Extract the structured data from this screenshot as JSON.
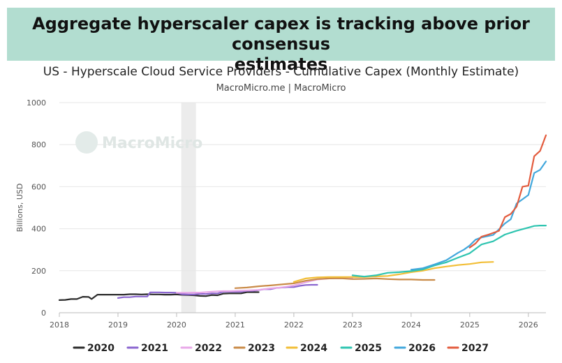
{
  "banner": {
    "line1": "Aggregate hyperscaler capex is tracking above prior consensus",
    "line2": "estimates"
  },
  "chart_data": {
    "type": "line",
    "title": "US - Hyperscale Cloud Service Providers - Cumulative Capex (Monthly Estimate)",
    "subtitle": "MacroMicro.me | MacroMicro",
    "watermark": "MacroMicro",
    "ylabel": "Billions, USD",
    "xlabel": "",
    "xlim": [
      2018.0,
      2026.3
    ],
    "ylim": [
      0,
      1000
    ],
    "x_ticks": [
      2018,
      2019,
      2020,
      2021,
      2022,
      2023,
      2024,
      2025,
      2026
    ],
    "y_ticks": [
      0,
      200,
      400,
      600,
      800,
      1000
    ],
    "shaded_band": [
      2020.08,
      2020.33
    ],
    "grid": true,
    "legend_position": "bottom",
    "series": [
      {
        "name": "2020",
        "color": "#2b2b2b",
        "x": [
          2018.0,
          2018.1,
          2018.2,
          2018.3,
          2018.4,
          2018.5,
          2018.55,
          2018.65,
          2018.75,
          2018.9,
          2019.0,
          2019.1,
          2019.2,
          2019.3,
          2019.4,
          2019.5,
          2019.6,
          2019.7,
          2019.8,
          2019.9,
          2020.0,
          2020.1,
          2020.2,
          2020.3,
          2020.4,
          2020.5,
          2020.6,
          2020.7,
          2020.8,
          2020.9,
          2021.0,
          2021.1,
          2021.2,
          2021.3,
          2021.4
        ],
        "y": [
          60,
          61,
          65,
          65,
          76,
          75,
          65,
          86,
          86,
          86,
          86,
          86,
          88,
          88,
          87,
          88,
          87,
          87,
          86,
          86,
          87,
          85,
          84,
          83,
          80,
          79,
          84,
          83,
          91,
          92,
          92,
          92,
          98,
          98,
          98
        ]
      },
      {
        "name": "2021",
        "color": "#8a65cf",
        "x": [
          2019.0,
          2019.1,
          2019.2,
          2019.3,
          2019.4,
          2019.5,
          2019.55,
          2019.6,
          2019.7,
          2019.8,
          2019.9,
          2020.0,
          2020.1,
          2020.2,
          2020.3,
          2020.4,
          2020.5,
          2020.6,
          2020.7,
          2020.8,
          2020.9,
          2021.0,
          2021.1,
          2021.2,
          2021.3,
          2021.4,
          2021.5,
          2021.6,
          2021.7,
          2021.8,
          2021.9,
          2022.0,
          2022.1,
          2022.2,
          2022.3,
          2022.4
        ],
        "y": [
          70,
          74,
          74,
          77,
          77,
          77,
          97,
          97,
          97,
          96,
          96,
          95,
          88,
          87,
          87,
          90,
          89,
          92,
          92,
          100,
          100,
          100,
          100,
          104,
          104,
          108,
          112,
          112,
          118,
          120,
          122,
          122,
          128,
          132,
          133,
          133
        ]
      },
      {
        "name": "2022",
        "color": "#e8a8e8",
        "x": [
          2020.0,
          2020.1,
          2020.2,
          2020.3,
          2020.4,
          2020.5,
          2020.6,
          2020.7,
          2020.8,
          2020.9,
          2021.0,
          2021.2,
          2021.4,
          2021.6,
          2021.8,
          2022.0,
          2022.2,
          2022.4,
          2022.6,
          2022.8,
          2023.0
        ],
        "y": [
          95,
          95,
          95,
          96,
          96,
          98,
          100,
          102,
          103,
          103,
          104,
          106,
          109,
          116,
          121,
          130,
          145,
          158,
          163,
          163,
          166
        ]
      },
      {
        "name": "2023",
        "color": "#c98a47",
        "x": [
          2021.0,
          2021.2,
          2021.4,
          2021.6,
          2021.8,
          2022.0,
          2022.2,
          2022.4,
          2022.6,
          2022.8,
          2023.0,
          2023.2,
          2023.4,
          2023.6,
          2023.8,
          2024.0,
          2024.2,
          2024.4
        ],
        "y": [
          117,
          120,
          126,
          130,
          135,
          140,
          152,
          160,
          163,
          164,
          160,
          161,
          163,
          160,
          158,
          158,
          156,
          156
        ]
      },
      {
        "name": "2024",
        "color": "#f2be36",
        "x": [
          2022.0,
          2022.2,
          2022.4,
          2022.6,
          2022.8,
          2023.0,
          2023.2,
          2023.4,
          2023.6,
          2023.8,
          2024.0,
          2024.2,
          2024.4,
          2024.6,
          2024.8,
          2025.0,
          2025.2,
          2025.4
        ],
        "y": [
          147,
          163,
          168,
          170,
          170,
          170,
          170,
          173,
          175,
          183,
          193,
          200,
          212,
          220,
          227,
          232,
          240,
          242
        ]
      },
      {
        "name": "2025",
        "color": "#2ec4b0",
        "x": [
          2023.0,
          2023.2,
          2023.4,
          2023.6,
          2023.8,
          2024.0,
          2024.2,
          2024.4,
          2024.6,
          2024.8,
          2025.0,
          2025.2,
          2025.4,
          2025.6,
          2025.8,
          2026.0,
          2026.1,
          2026.2,
          2026.3
        ],
        "y": [
          178,
          172,
          178,
          190,
          193,
          198,
          206,
          225,
          240,
          262,
          283,
          325,
          340,
          372,
          390,
          405,
          413,
          415,
          415
        ]
      },
      {
        "name": "2026",
        "color": "#41a7dc",
        "x": [
          2024.0,
          2024.2,
          2024.4,
          2024.6,
          2024.8,
          2024.9,
          2025.0,
          2025.1,
          2025.2,
          2025.4,
          2025.6,
          2025.7,
          2025.8,
          2025.9,
          2026.0,
          2026.1,
          2026.2,
          2026.3
        ],
        "y": [
          205,
          212,
          230,
          250,
          285,
          300,
          320,
          348,
          358,
          370,
          425,
          445,
          520,
          540,
          560,
          665,
          680,
          720
        ]
      },
      {
        "name": "2027",
        "color": "#e35b3d",
        "x": [
          2025.0,
          2025.1,
          2025.2,
          2025.3,
          2025.4,
          2025.5,
          2025.6,
          2025.7,
          2025.8,
          2025.9,
          2026.0,
          2026.1,
          2026.2,
          2026.3
        ],
        "y": [
          310,
          330,
          362,
          370,
          380,
          390,
          455,
          470,
          505,
          600,
          605,
          745,
          770,
          845
        ]
      }
    ]
  }
}
